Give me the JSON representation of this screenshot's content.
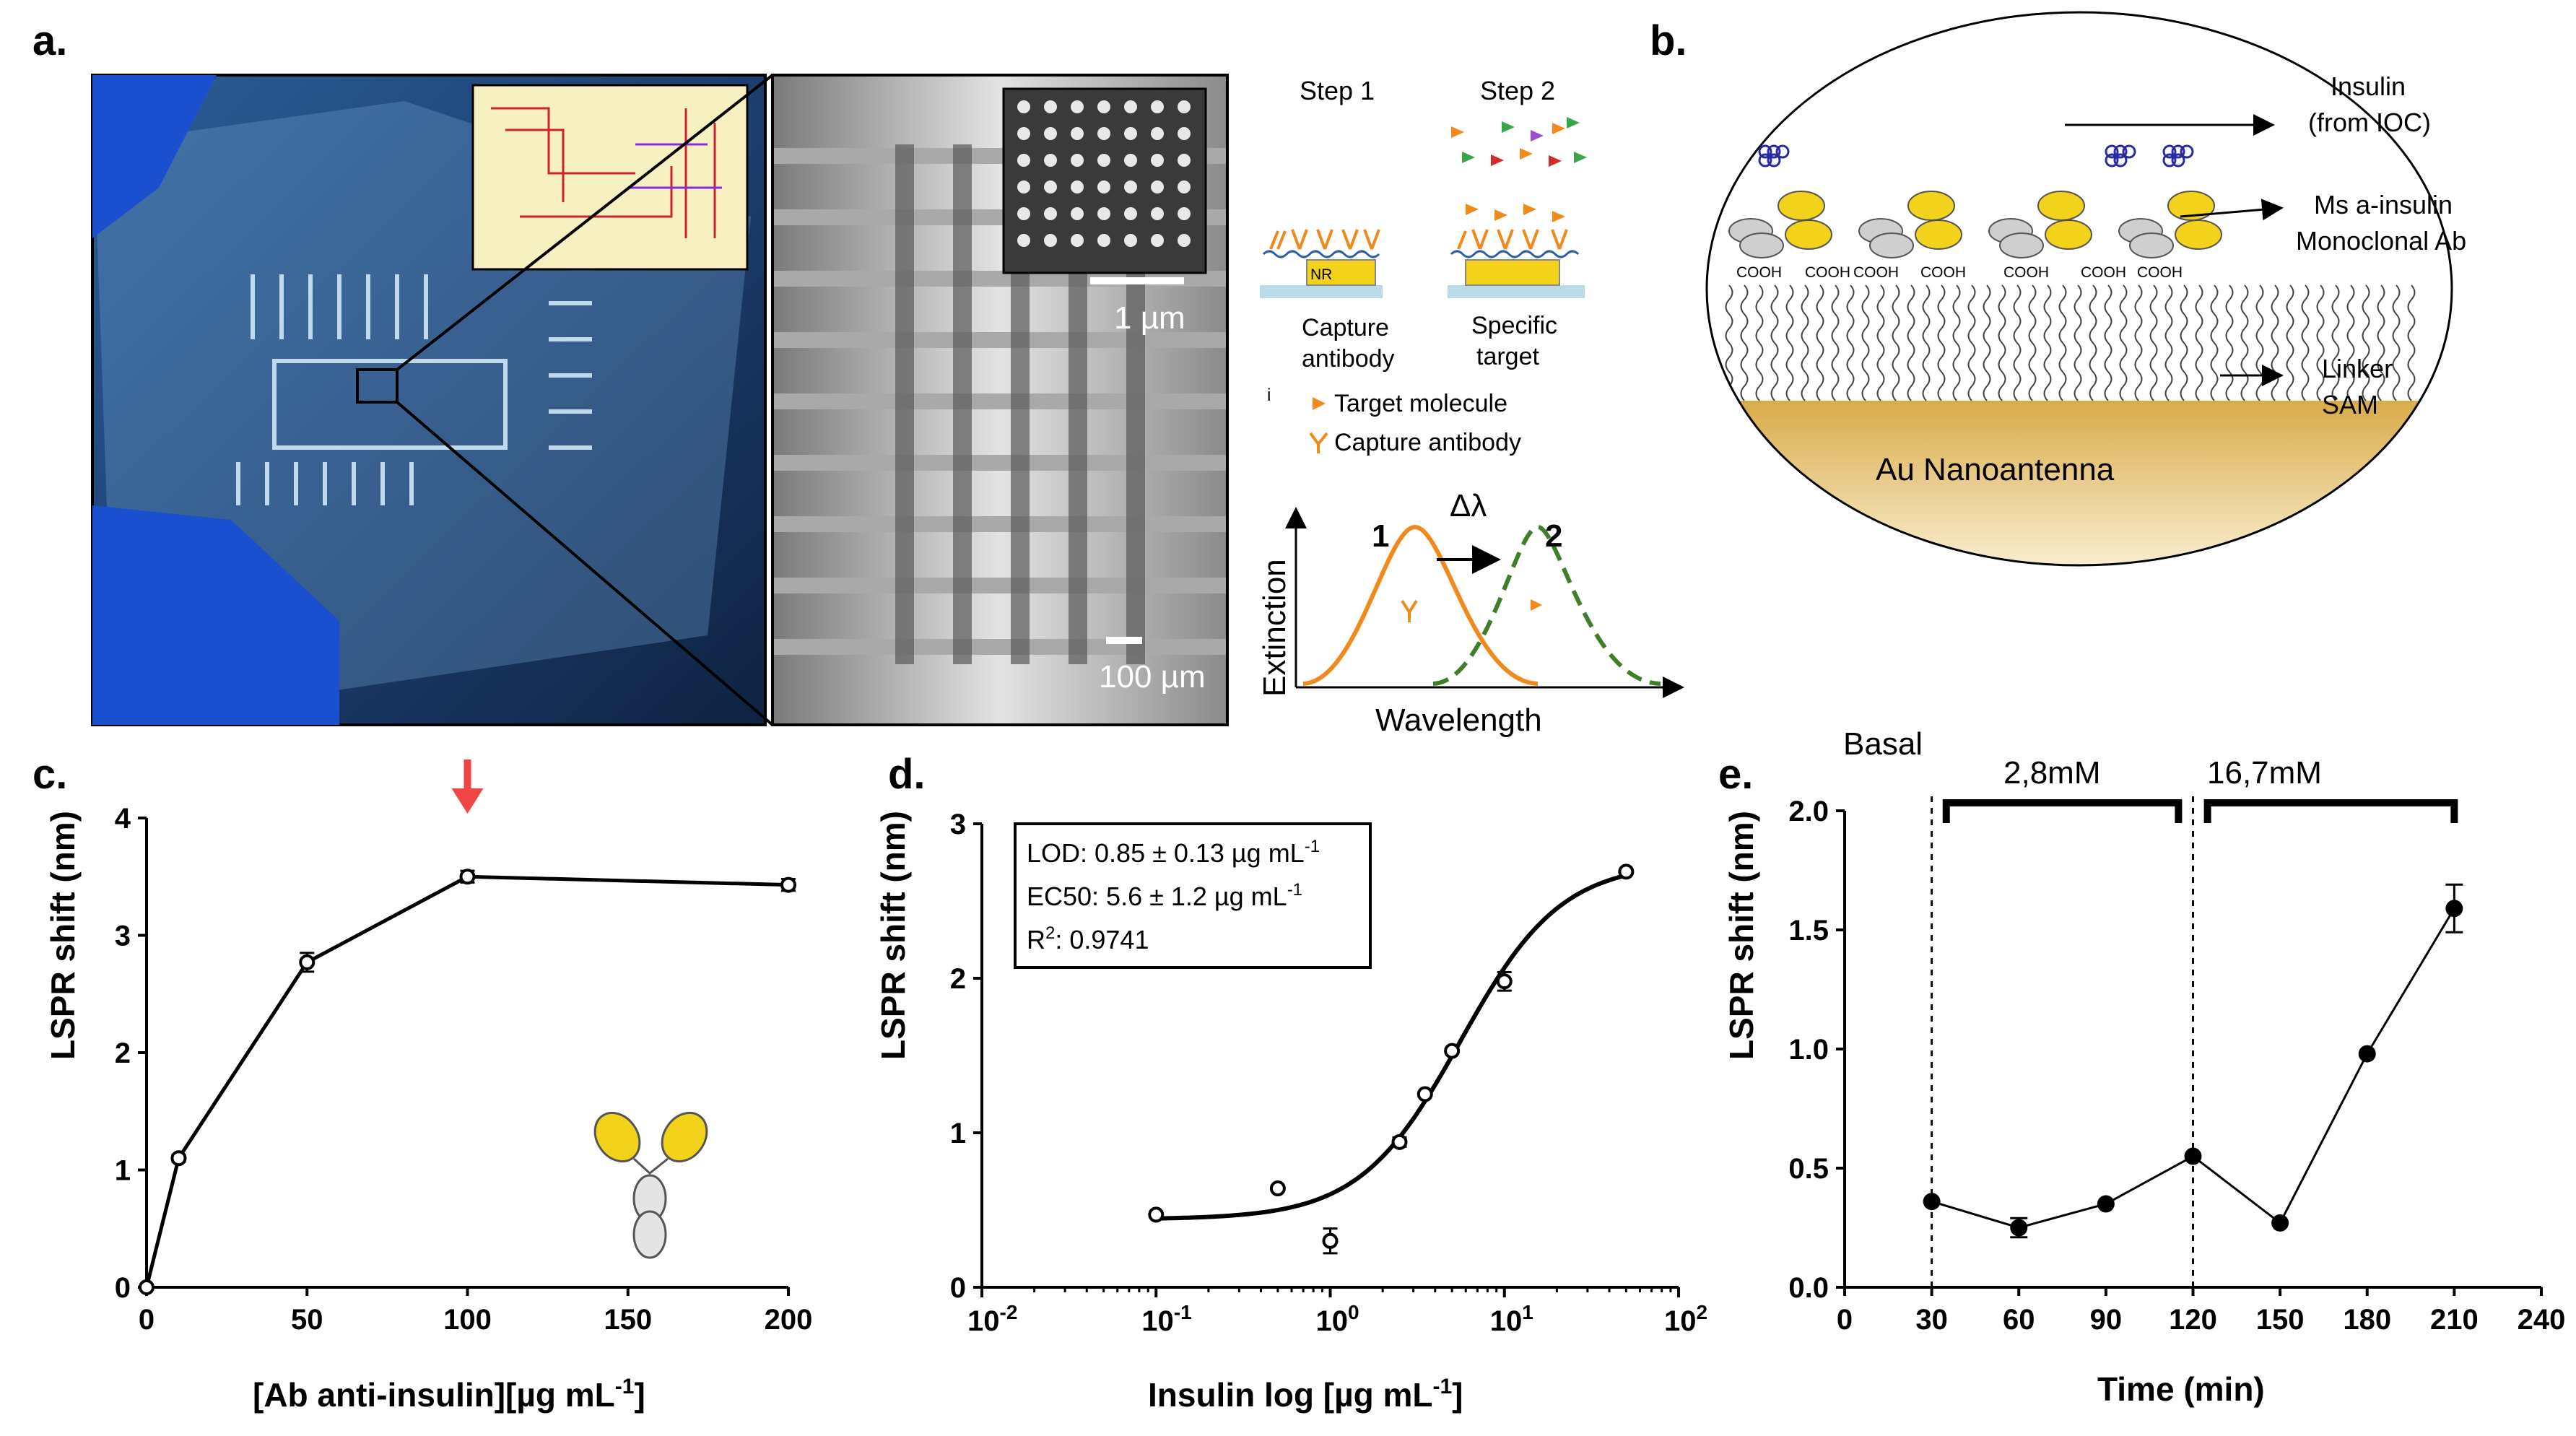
{
  "panel_labels": {
    "a": "a.",
    "b": "b.",
    "c": "c.",
    "d": "d.",
    "e": "e."
  },
  "panel_a": {
    "scalebar_1um": "1 µm",
    "scalebar_100um": "100 µm",
    "step1": "Step 1",
    "step2": "Step 2",
    "nr_label": "NR",
    "step1_caption_1": "Capture",
    "step1_caption_2": "antibody",
    "step2_caption_1": "Specific",
    "step2_caption_2": "target",
    "stray_mark": "i",
    "legend_target": "Target molecule",
    "legend_capture": "Capture antibody",
    "delta_lambda": "Δλ",
    "peak1": "1",
    "peak2": "2",
    "ylabel": "Extinction",
    "xlabel": "Wavelength",
    "colors": {
      "orange": "#f08a1c",
      "green": "#3f7f2a",
      "yellow": "#f2d21b",
      "chip": "#8ec5f0"
    }
  },
  "panel_b": {
    "insulin_label": "Insulin",
    "insulin_sub": "(from IOC)",
    "ab_label": "Ms a-insulin",
    "ab_sub": "Monoclonal Ab",
    "linker_label": "Linker",
    "linker_sub": "SAM",
    "cooh_labels": [
      "COOH",
      "COOH",
      "COOH",
      "COOH",
      "COOH",
      "COOH",
      "COOH"
    ],
    "substrate_label": "Au Nanoantenna",
    "colors": {
      "gold": "#d9ab4a",
      "insulin": "#2a2aa0",
      "antibody": "#f2d21b"
    }
  },
  "chart_data": [
    {
      "panel": "c",
      "type": "line",
      "xlabel": "[Ab anti-insulin][µg mL-1]",
      "xlabel_main": "[Ab anti-insulin][µg mL",
      "xlabel_sup": "-1",
      "xlabel_end": "]",
      "ylabel": "LSPR shift (nm)",
      "xlim": [
        0,
        200
      ],
      "ylim": [
        0,
        4
      ],
      "xticks": [
        "0",
        "50",
        "100",
        "150",
        "200"
      ],
      "yticks": [
        "0",
        "1",
        "2",
        "3",
        "4"
      ],
      "x": [
        0,
        10,
        50,
        100,
        200
      ],
      "y": [
        0,
        1.1,
        2.77,
        3.5,
        3.43
      ],
      "yerr": [
        0,
        0.03,
        0.08,
        0.05,
        0.05
      ],
      "annotation": "optimal concentration arrow at 100",
      "arrow_x": 100
    },
    {
      "panel": "d",
      "type": "scatter",
      "xscale": "log",
      "xlabel": "Insulin log [µg mL-1]",
      "xlabel_main": "Insulin log [µg mL",
      "xlabel_sup": "-1",
      "xlabel_end": "]",
      "ylabel": "LSPR shift (nm)",
      "xlim": [
        0.01,
        100
      ],
      "ylim": [
        0,
        3
      ],
      "xticks": [
        "10",
        "10",
        "10",
        "10",
        "10"
      ],
      "xtick_exps": [
        "-2",
        "-1",
        "0",
        "1",
        "2"
      ],
      "yticks": [
        "0",
        "1",
        "2",
        "3"
      ],
      "x": [
        0.1,
        0.5,
        1.0,
        2.5,
        3.5,
        5.0,
        10,
        50
      ],
      "y": [
        0.47,
        0.64,
        0.3,
        0.94,
        1.25,
        1.53,
        1.98,
        2.69
      ],
      "yerr": [
        0,
        0,
        0.08,
        0.03,
        0,
        0,
        0.06,
        0
      ],
      "fit": {
        "bottom": 0.44,
        "top": 2.75,
        "ec50": 5.6,
        "hill": 1.5
      },
      "legend_lines": [
        {
          "text": "LOD: 0.85 ± 0.13  µg mL",
          "sup": "-1"
        },
        {
          "text": "EC50: 5.6 ± 1.2 µg mL",
          "sup": "-1"
        },
        {
          "text": "R",
          "sup": "2",
          "tail": ": 0.9741"
        }
      ]
    },
    {
      "panel": "e",
      "type": "line",
      "xlabel": "Time (min)",
      "ylabel": "LSPR shift (nm)",
      "xlim": [
        0,
        240
      ],
      "ylim": [
        0,
        2
      ],
      "xticks": [
        "0",
        "30",
        "60",
        "90",
        "120",
        "150",
        "180",
        "210",
        "240"
      ],
      "yticks": [
        "0.0",
        "0.5",
        "1.0",
        "1.5",
        "2.0"
      ],
      "x": [
        30,
        60,
        90,
        120,
        150,
        180,
        210
      ],
      "y": [
        0.36,
        0.25,
        0.35,
        0.55,
        0.27,
        0.98,
        1.59
      ],
      "yerr": [
        0,
        0.04,
        0,
        0,
        0,
        0,
        0.1
      ],
      "phases": [
        {
          "label": "Basal"
        },
        {
          "label": "2,8mM",
          "from": 35,
          "to": 115
        },
        {
          "label": "16,7mM",
          "from": 125,
          "to": 210
        }
      ],
      "dashed_at": [
        30,
        120
      ]
    }
  ]
}
